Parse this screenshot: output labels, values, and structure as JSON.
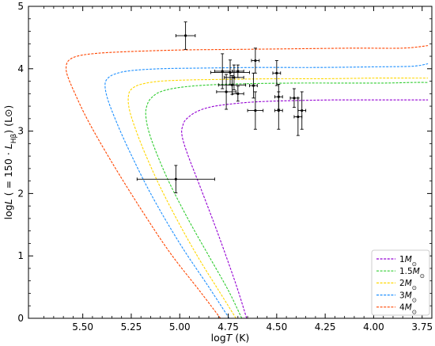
{
  "chart_data": {
    "type": "line",
    "xlabel": "logT (K)",
    "xlabel_parts": {
      "pre": "log",
      "italic": "T",
      "post": " (K)"
    },
    "ylabel": "logL ( = 150 · L_Hβ) (L⊙)",
    "ylabel_parts": {
      "pre": "log",
      "italic": "L",
      "mid": " ( = 150 · ",
      "italic2": "L",
      "sub": "Hβ",
      "post": ") (L",
      "sun": "⊙",
      "end": ")"
    },
    "xlim": [
      5.78,
      3.7
    ],
    "ylim": [
      0,
      5
    ],
    "x_inverted": true,
    "xticks": [
      5.5,
      5.25,
      5.0,
      4.75,
      4.5,
      4.25,
      4.0,
      3.75
    ],
    "xtick_labels": [
      "5.50",
      "5.25",
      "5.00",
      "4.75",
      "4.50",
      "4.25",
      "4.00",
      "3.75"
    ],
    "yticks": [
      0,
      1,
      2,
      3,
      4,
      5
    ],
    "ytick_labels": [
      "0",
      "1",
      "2",
      "3",
      "4",
      "5"
    ],
    "legend_position": "lower-right",
    "grid": false,
    "series": [
      {
        "name": "1M⊙",
        "label_num": "1",
        "color": "#9400d3",
        "x": [
          4.655,
          4.7,
          4.75,
          4.82,
          4.9,
          4.95,
          4.98,
          4.99,
          4.985,
          4.97,
          4.92,
          4.85,
          4.75,
          4.6,
          4.4,
          4.2,
          4.0,
          3.85,
          3.72
        ],
        "y": [
          0.0,
          0.45,
          0.9,
          1.5,
          2.15,
          2.55,
          2.82,
          2.98,
          3.08,
          3.18,
          3.3,
          3.38,
          3.43,
          3.47,
          3.49,
          3.5,
          3.5,
          3.5,
          3.5
        ]
      },
      {
        "name": "1.5M⊙",
        "label_num": "1.5",
        "color": "#32cd32",
        "x": [
          4.68,
          4.75,
          4.85,
          4.95,
          5.05,
          5.12,
          5.16,
          5.175,
          5.17,
          5.15,
          5.1,
          5.0,
          4.85,
          4.65,
          4.4,
          4.15,
          3.95,
          3.8,
          3.72
        ],
        "y": [
          0.0,
          0.45,
          1.0,
          1.55,
          2.15,
          2.65,
          3.0,
          3.25,
          3.4,
          3.52,
          3.63,
          3.7,
          3.74,
          3.76,
          3.77,
          3.77,
          3.77,
          3.78,
          3.78
        ]
      },
      {
        "name": "2M⊙",
        "label_num": "2",
        "color": "#ffd700",
        "x": [
          4.71,
          4.8,
          4.9,
          5.0,
          5.1,
          5.18,
          5.23,
          5.26,
          5.265,
          5.25,
          5.2,
          5.1,
          4.95,
          4.75,
          4.5,
          4.25,
          4.0,
          3.8,
          3.72
        ],
        "y": [
          0.0,
          0.45,
          0.95,
          1.5,
          2.1,
          2.65,
          3.05,
          3.35,
          3.55,
          3.67,
          3.75,
          3.8,
          3.82,
          3.83,
          3.84,
          3.84,
          3.85,
          3.85,
          3.85
        ]
      },
      {
        "name": "3M⊙",
        "label_num": "3",
        "color": "#1e90ff",
        "x": [
          4.745,
          4.85,
          5.0,
          5.15,
          5.27,
          5.34,
          5.375,
          5.385,
          5.37,
          5.33,
          5.25,
          5.1,
          4.9,
          4.6,
          4.3,
          4.0,
          3.8,
          3.72
        ],
        "y": [
          0.0,
          0.5,
          1.2,
          2.0,
          2.75,
          3.25,
          3.55,
          3.75,
          3.85,
          3.92,
          3.97,
          4.0,
          4.01,
          4.02,
          4.02,
          4.03,
          4.04,
          4.08
        ]
      },
      {
        "name": "4M⊙",
        "label_num": "4",
        "color": "#ff4500",
        "x": [
          4.79,
          4.9,
          5.05,
          5.2,
          5.35,
          5.47,
          5.54,
          5.58,
          5.585,
          5.57,
          5.53,
          5.45,
          5.3,
          5.0,
          4.7,
          4.4,
          4.1,
          3.85,
          3.72
        ],
        "y": [
          0.0,
          0.45,
          1.05,
          1.75,
          2.5,
          3.15,
          3.6,
          3.9,
          4.05,
          4.14,
          4.2,
          4.24,
          4.27,
          4.3,
          4.31,
          4.32,
          4.33,
          4.33,
          4.37
        ]
      }
    ],
    "points": [
      {
        "x": 4.97,
        "y": 4.53,
        "xerr": 0.05,
        "yerr": 0.22
      },
      {
        "x": 4.78,
        "y": 3.96,
        "xerr": 0.04,
        "yerr": 0.28
      },
      {
        "x": 4.74,
        "y": 3.94,
        "xerr": 0.1,
        "yerr": 0.2
      },
      {
        "x": 4.7,
        "y": 3.96,
        "xerr": 0.03,
        "yerr": 0.1
      },
      {
        "x": 4.73,
        "y": 3.74,
        "xerr": 0.07,
        "yerr": 0.15
      },
      {
        "x": 4.7,
        "y": 3.6,
        "xerr": 0.03,
        "yerr": 0.12
      },
      {
        "x": 4.76,
        "y": 3.63,
        "xerr": 0.05,
        "yerr": 0.28
      },
      {
        "x": 4.72,
        "y": 3.86,
        "xerr": 0.05,
        "yerr": 0.2
      },
      {
        "x": 4.61,
        "y": 4.13,
        "xerr": 0.02,
        "yerr": 0.2
      },
      {
        "x": 4.62,
        "y": 3.73,
        "xerr": 0.02,
        "yerr": 0.2
      },
      {
        "x": 4.61,
        "y": 3.33,
        "xerr": 0.04,
        "yerr": 0.3
      },
      {
        "x": 4.5,
        "y": 3.93,
        "xerr": 0.02,
        "yerr": 0.2
      },
      {
        "x": 4.49,
        "y": 3.55,
        "xerr": 0.02,
        "yerr": 0.2
      },
      {
        "x": 4.49,
        "y": 3.33,
        "xerr": 0.02,
        "yerr": 0.3
      },
      {
        "x": 4.41,
        "y": 3.53,
        "xerr": 0.02,
        "yerr": 0.15
      },
      {
        "x": 4.39,
        "y": 3.23,
        "xerr": 0.02,
        "yerr": 0.3
      },
      {
        "x": 4.37,
        "y": 3.33,
        "xerr": 0.02,
        "yerr": 0.3
      },
      {
        "x": 5.02,
        "y": 2.23,
        "xerr": 0.2,
        "yerr": 0.22
      }
    ]
  }
}
